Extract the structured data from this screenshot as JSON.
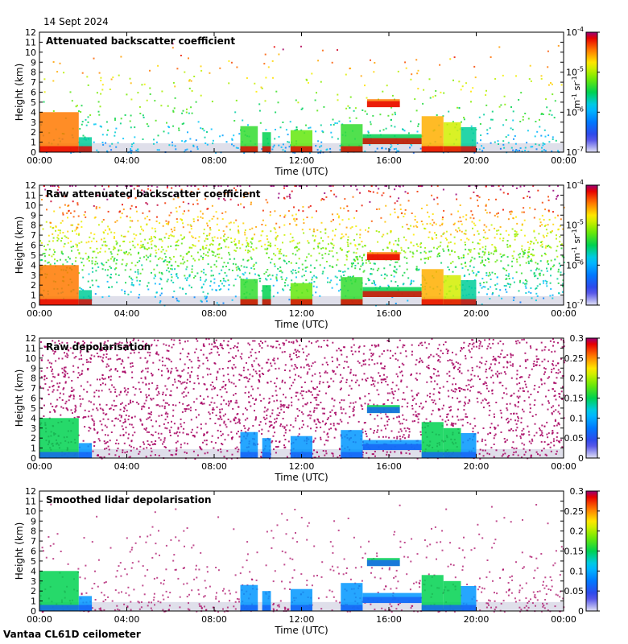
{
  "date": "14 Sept 2024",
  "footer": "Vantaa CL61D ceilometer",
  "colors": {
    "background_clear": "#dcdce8",
    "axis": "#000000"
  },
  "chart_data": [
    {
      "type": "heatmap",
      "title": "Attenuated backscatter coefficient",
      "xlabel": "Time (UTC)",
      "ylabel": "Height (km)",
      "xticks": [
        "00:00",
        "04:00",
        "08:00",
        "12:00",
        "16:00",
        "20:00",
        "00:00"
      ],
      "xlim_hours": [
        0,
        24
      ],
      "ylim": [
        0,
        12
      ],
      "yticks": [
        "0",
        "1",
        "2",
        "3",
        "4",
        "5",
        "6",
        "7",
        "8",
        "9",
        "10",
        "11",
        "12"
      ],
      "colorbar": {
        "scale": "log",
        "range": [
          1e-07,
          0.0001
        ],
        "ticks": [
          {
            "value": 0.0001,
            "base": "10",
            "exp": "-4"
          },
          {
            "value": 1e-05,
            "base": "10",
            "exp": "-5"
          },
          {
            "value": 1e-06,
            "base": "10",
            "exp": "-6"
          },
          {
            "value": 1e-07,
            "base": "10",
            "exp": "-7"
          }
        ],
        "unit_parts": [
          "m",
          "-1",
          " sr",
          "-1"
        ]
      }
    },
    {
      "type": "heatmap",
      "title": "Raw attenuated backscatter coefficient",
      "xlabel": "Time (UTC)",
      "ylabel": "Height (km)",
      "xticks": [
        "00:00",
        "04:00",
        "08:00",
        "12:00",
        "16:00",
        "20:00",
        "00:00"
      ],
      "xlim_hours": [
        0,
        24
      ],
      "ylim": [
        0,
        12
      ],
      "yticks": [
        "0",
        "1",
        "2",
        "3",
        "4",
        "5",
        "6",
        "7",
        "8",
        "9",
        "10",
        "11",
        "12"
      ],
      "colorbar": {
        "scale": "log",
        "range": [
          1e-07,
          0.0001
        ],
        "ticks": [
          {
            "value": 0.0001,
            "base": "10",
            "exp": "-4"
          },
          {
            "value": 1e-05,
            "base": "10",
            "exp": "-5"
          },
          {
            "value": 1e-06,
            "base": "10",
            "exp": "-6"
          },
          {
            "value": 1e-07,
            "base": "10",
            "exp": "-7"
          }
        ],
        "unit_parts": [
          "m",
          "-1",
          " sr",
          "-1"
        ]
      }
    },
    {
      "type": "heatmap",
      "title": "Raw depolarisation",
      "xlabel": "Time (UTC)",
      "ylabel": "Height (km)",
      "xticks": [
        "00:00",
        "04:00",
        "08:00",
        "12:00",
        "16:00",
        "20:00",
        "00:00"
      ],
      "xlim_hours": [
        0,
        24
      ],
      "ylim": [
        0,
        12
      ],
      "yticks": [
        "0",
        "1",
        "2",
        "3",
        "4",
        "5",
        "6",
        "7",
        "8",
        "9",
        "10",
        "11",
        "12"
      ],
      "colorbar": {
        "scale": "linear",
        "range": [
          0,
          0.3
        ],
        "ticks": [
          {
            "value": 0.3,
            "label": "0.3"
          },
          {
            "value": 0.25,
            "label": "0.25"
          },
          {
            "value": 0.2,
            "label": "0.2"
          },
          {
            "value": 0.15,
            "label": "0.15"
          },
          {
            "value": 0.1,
            "label": "0.1"
          },
          {
            "value": 0.05,
            "label": "0.05"
          },
          {
            "value": 0,
            "label": "0"
          }
        ]
      }
    },
    {
      "type": "heatmap",
      "title": "Smoothed lidar depolarisation",
      "xlabel": "Time (UTC)",
      "ylabel": "Height (km)",
      "xticks": [
        "00:00",
        "04:00",
        "08:00",
        "12:00",
        "16:00",
        "20:00",
        "00:00"
      ],
      "xlim_hours": [
        0,
        24
      ],
      "ylim": [
        0,
        12
      ],
      "yticks": [
        "0",
        "1",
        "2",
        "3",
        "4",
        "5",
        "6",
        "7",
        "8",
        "9",
        "10",
        "11",
        "12"
      ],
      "colorbar": {
        "scale": "linear",
        "range": [
          0,
          0.3
        ],
        "ticks": [
          {
            "value": 0.3,
            "label": "0.3"
          },
          {
            "value": 0.25,
            "label": "0.25"
          },
          {
            "value": 0.2,
            "label": "0.2"
          },
          {
            "value": 0.15,
            "label": "0.15"
          },
          {
            "value": 0.1,
            "label": "0.1"
          },
          {
            "value": 0.05,
            "label": "0.05"
          },
          {
            "value": 0,
            "label": "0"
          }
        ]
      }
    }
  ]
}
